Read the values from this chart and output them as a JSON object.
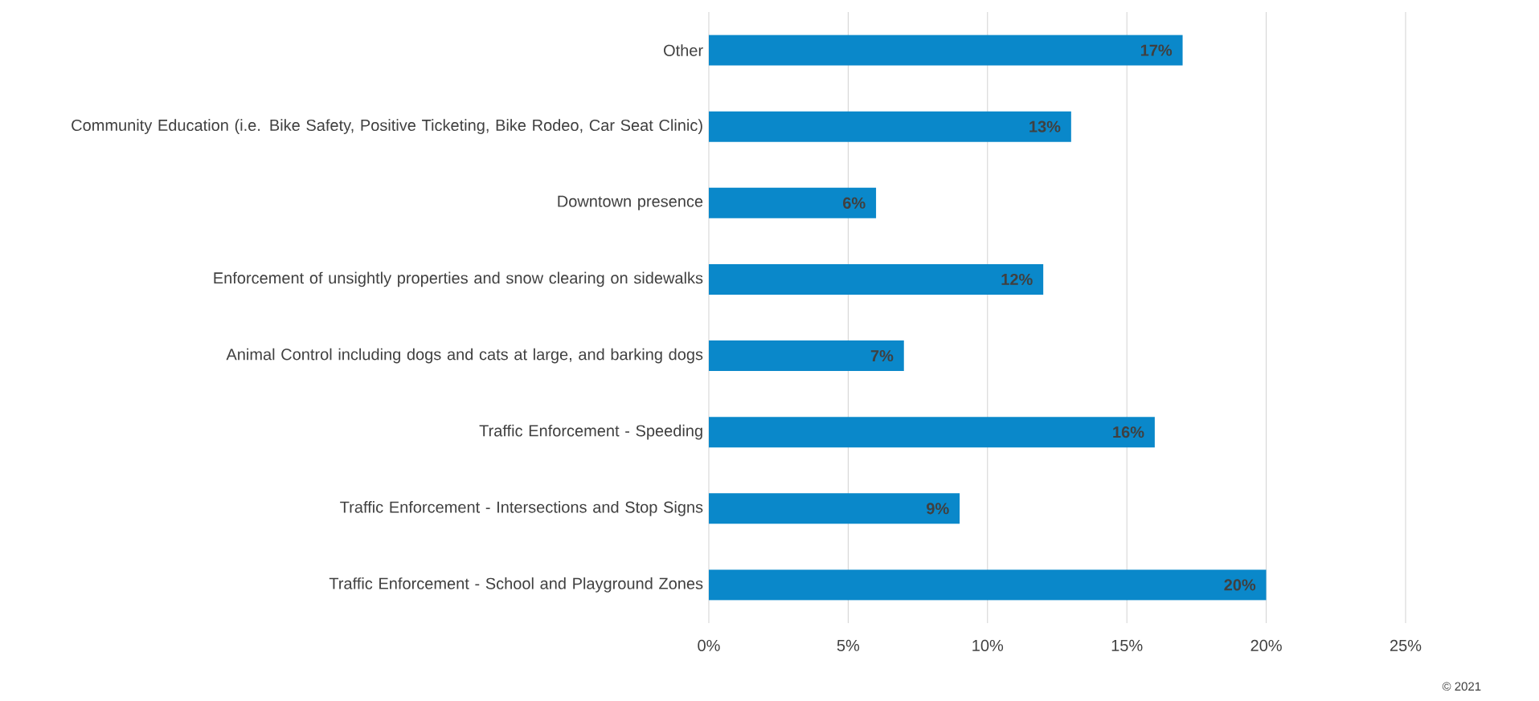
{
  "chart_data": {
    "type": "bar",
    "orientation": "horizontal",
    "categories": [
      "Other",
      "Community Education (i.e. Bike Safety, Positive Ticketing, Bike Rodeo, Car Seat Clinic)",
      "Downtown presence",
      "Enforcement of unsightly properties and snow clearing on sidewalks",
      "Animal Control including dogs and cats at large, and barking dogs",
      "Traffic Enforcement - Speeding",
      "Traffic Enforcement - Intersections and Stop Signs",
      "Traffic Enforcement - School and Playground Zones"
    ],
    "values": [
      17,
      13,
      6,
      12,
      7,
      16,
      9,
      20
    ],
    "value_labels": [
      "17%",
      "13%",
      "6%",
      "12%",
      "7%",
      "16%",
      "9%",
      "20%"
    ],
    "color": "#0a88ca",
    "xlim": [
      0,
      25
    ],
    "xticks": [
      {
        "value": 0,
        "label": "0%"
      },
      {
        "value": 5,
        "label": "5%"
      },
      {
        "value": 10,
        "label": "10%"
      },
      {
        "value": 15,
        "label": "15%"
      },
      {
        "value": 20,
        "label": "20%"
      },
      {
        "value": 25,
        "label": "25%"
      }
    ],
    "grid": "x",
    "annotations": [
      "© 2021"
    ]
  }
}
